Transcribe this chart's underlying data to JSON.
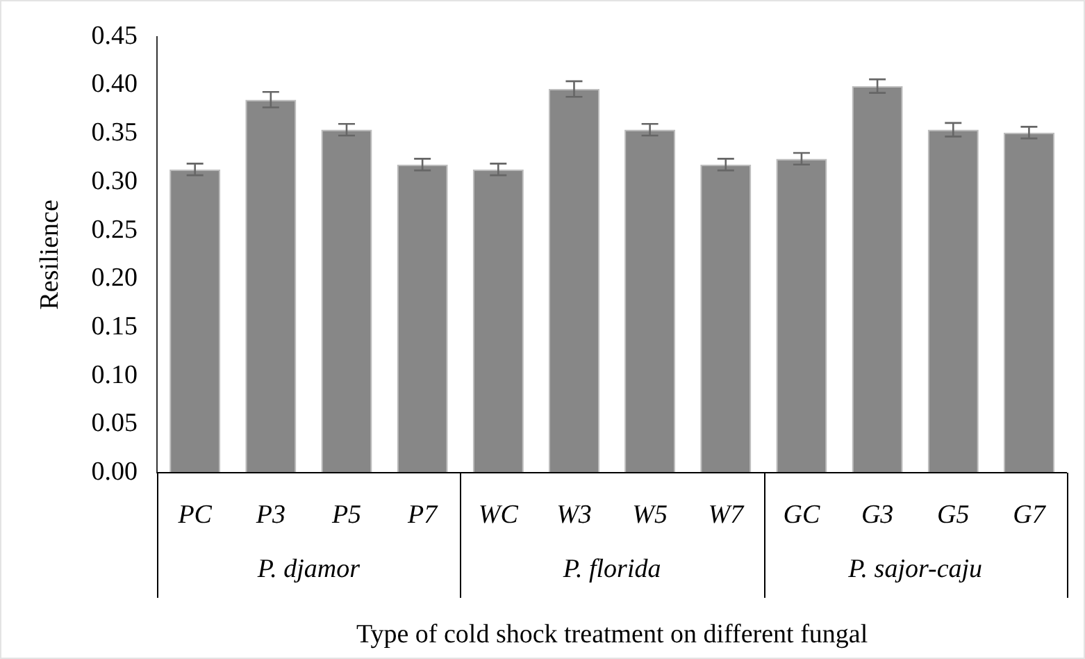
{
  "chart_data": {
    "type": "bar",
    "xlabel": "Type of cold shock treatment on different fungal",
    "ylabel": "Resilience",
    "categories": [
      "PC",
      "P3",
      "P5",
      "P7",
      "WC",
      "W3",
      "W5",
      "W7",
      "GC",
      "G3",
      "G5",
      "G7"
    ],
    "values": [
      0.313,
      0.385,
      0.354,
      0.318,
      0.313,
      0.396,
      0.354,
      0.318,
      0.324,
      0.399,
      0.354,
      0.351
    ],
    "errors": [
      0.006,
      0.008,
      0.006,
      0.006,
      0.006,
      0.008,
      0.006,
      0.006,
      0.006,
      0.007,
      0.007,
      0.006
    ],
    "color": "#878787",
    "ylim": [
      0,
      0.45
    ],
    "yticks": [
      {
        "value": 0,
        "label": "0.00"
      },
      {
        "value": 0.05,
        "label": "0.05"
      },
      {
        "value": 0.1,
        "label": "0.10"
      },
      {
        "value": 0.15,
        "label": "0.15"
      },
      {
        "value": 0.2,
        "label": "0.20"
      },
      {
        "value": 0.25,
        "label": "0.25"
      },
      {
        "value": 0.3,
        "label": "0.30"
      },
      {
        "value": 0.35,
        "label": "0.35"
      },
      {
        "value": 0.4,
        "label": "0.40"
      },
      {
        "value": 0.45,
        "label": "0.45"
      }
    ],
    "annotations": [
      "P. djamor",
      "P. florida",
      "P. sajor-caju"
    ],
    "grid": false,
    "legend": false
  }
}
